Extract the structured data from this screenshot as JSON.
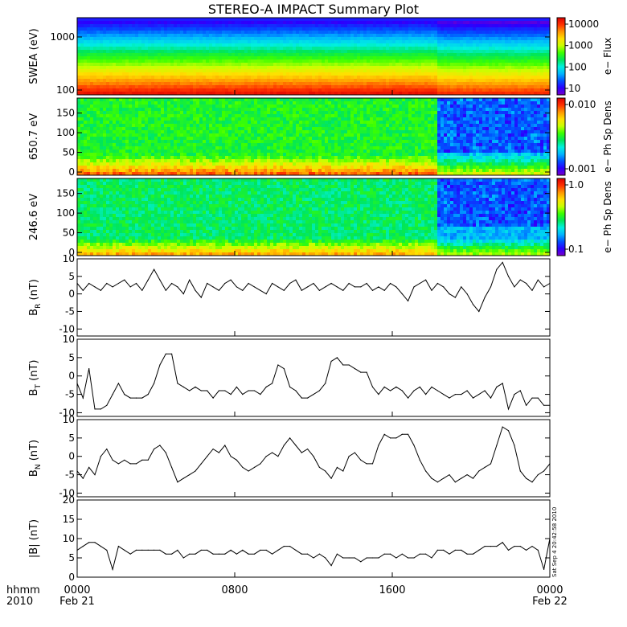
{
  "title": "STEREO-A IMPACT Summary Plot",
  "stamp": "Sat Sep  4 20:42:58 2010",
  "x_axis": {
    "hhmm_label": "hhmm",
    "year_label": "2010",
    "ticks": [
      {
        "hhmm": "0000",
        "date": "Feb 21"
      },
      {
        "hhmm": "0800",
        "date": ""
      },
      {
        "hhmm": "1600",
        "date": ""
      },
      {
        "hhmm": "0000",
        "date": "Feb 22"
      }
    ]
  },
  "colors": {
    "colormap": [
      "#7a00c8",
      "#2a00ff",
      "#0050ff",
      "#00b4ff",
      "#00f0e0",
      "#00e65a",
      "#3cff00",
      "#c8ff00",
      "#ffe000",
      "#ff9600",
      "#ff3200",
      "#dc0000"
    ],
    "line": "#000000"
  },
  "chart_data": [
    {
      "type": "heatmap",
      "ylabel": "SWEA (eV)",
      "yscale": "log",
      "yticks": [
        "1000",
        "100"
      ],
      "colorbar": {
        "label": "e− Flux",
        "ticks": [
          "10000",
          "1000",
          "100",
          "10"
        ]
      },
      "description_values": {
        "energy_eV": [
          100,
          2000
        ],
        "flux_range": [
          10,
          10000
        ]
      }
    },
    {
      "type": "heatmap",
      "ylabel": "650.7 eV",
      "ylim": [
        0,
        180
      ],
      "yticks": [
        "150",
        "100",
        "50",
        "0"
      ],
      "colorbar": {
        "label": "e− Ph Sp Dens",
        "ticks": [
          "0.010",
          "0.001"
        ]
      }
    },
    {
      "type": "heatmap",
      "ylabel": "246.6 eV",
      "ylim": [
        0,
        180
      ],
      "yticks": [
        "150",
        "100",
        "50",
        "0"
      ],
      "colorbar": {
        "label": "e− Ph Sp Dens",
        "ticks": [
          "1.0",
          "0.1"
        ]
      }
    },
    {
      "type": "line",
      "ylabel": "B",
      "ylabel_sub": "R",
      "ylabel_unit": "(nT)",
      "ylim": [
        -12,
        10
      ],
      "yticks": [
        "10",
        "5",
        "0",
        "-5",
        "-10"
      ],
      "x_hours": [
        0,
        0.3,
        0.6,
        0.9,
        1.2,
        1.5,
        1.8,
        2.1,
        2.4,
        2.7,
        3,
        3.3,
        3.6,
        3.9,
        4.2,
        4.5,
        4.8,
        5.1,
        5.4,
        5.7,
        6,
        6.3,
        6.6,
        6.9,
        7.2,
        7.5,
        7.8,
        8.1,
        8.4,
        8.7,
        9,
        9.3,
        9.6,
        9.9,
        10.2,
        10.5,
        10.8,
        11.1,
        11.4,
        11.7,
        12,
        12.3,
        12.6,
        12.9,
        13.2,
        13.5,
        13.8,
        14.1,
        14.4,
        14.7,
        15,
        15.3,
        15.6,
        15.9,
        16.2,
        16.5,
        16.8,
        17.1,
        17.4,
        17.7,
        18,
        18.3,
        18.6,
        18.9,
        19.2,
        19.5,
        19.8,
        20.1,
        20.4,
        20.7,
        21,
        21.3,
        21.6,
        21.9,
        22.2,
        22.5,
        22.8,
        23.1,
        23.4,
        23.7,
        24
      ],
      "values": [
        3,
        1,
        3,
        2,
        1,
        3,
        2,
        3,
        4,
        2,
        3,
        1,
        4,
        7,
        4,
        1,
        3,
        2,
        0,
        4,
        1,
        -1,
        3,
        2,
        1,
        3,
        4,
        2,
        1,
        3,
        2,
        1,
        0,
        3,
        2,
        1,
        3,
        4,
        1,
        2,
        3,
        1,
        2,
        3,
        2,
        1,
        3,
        2,
        2,
        3,
        1,
        2,
        1,
        3,
        2,
        0,
        -2,
        2,
        3,
        4,
        1,
        3,
        2,
        0,
        -1,
        2,
        0,
        -3,
        -5,
        -1,
        2,
        7,
        9,
        5,
        2,
        4,
        3,
        1,
        4,
        2,
        3
      ]
    },
    {
      "type": "line",
      "ylabel": "B",
      "ylabel_sub": "T",
      "ylabel_unit": "(nT)",
      "ylim": [
        -11,
        10
      ],
      "yticks": [
        "10",
        "5",
        "0",
        "-5",
        "-10"
      ],
      "x_hours": [
        0,
        0.3,
        0.6,
        0.9,
        1.2,
        1.5,
        1.8,
        2.1,
        2.4,
        2.7,
        3,
        3.3,
        3.6,
        3.9,
        4.2,
        4.5,
        4.8,
        5.1,
        5.4,
        5.7,
        6,
        6.3,
        6.6,
        6.9,
        7.2,
        7.5,
        7.8,
        8.1,
        8.4,
        8.7,
        9,
        9.3,
        9.6,
        9.9,
        10.2,
        10.5,
        10.8,
        11.1,
        11.4,
        11.7,
        12,
        12.3,
        12.6,
        12.9,
        13.2,
        13.5,
        13.8,
        14.1,
        14.4,
        14.7,
        15,
        15.3,
        15.6,
        15.9,
        16.2,
        16.5,
        16.8,
        17.1,
        17.4,
        17.7,
        18,
        18.3,
        18.6,
        18.9,
        19.2,
        19.5,
        19.8,
        20.1,
        20.4,
        20.7,
        21,
        21.3,
        21.6,
        21.9,
        22.2,
        22.5,
        22.8,
        23.1,
        23.4,
        23.7,
        24
      ],
      "values": [
        -2,
        -6,
        2,
        -9,
        -9,
        -8,
        -5,
        -2,
        -5,
        -6,
        -6,
        -6,
        -5,
        -2,
        3,
        6,
        6,
        -2,
        -3,
        -4,
        -3,
        -4,
        -4,
        -6,
        -4,
        -4,
        -5,
        -3,
        -5,
        -4,
        -4,
        -5,
        -3,
        -2,
        3,
        2,
        -3,
        -4,
        -6,
        -6,
        -5,
        -4,
        -2,
        4,
        5,
        3,
        3,
        2,
        1,
        1,
        -3,
        -5,
        -3,
        -4,
        -3,
        -4,
        -6,
        -4,
        -3,
        -5,
        -3,
        -4,
        -5,
        -6,
        -5,
        -5,
        -4,
        -6,
        -5,
        -4,
        -6,
        -3,
        -2,
        -9,
        -5,
        -4,
        -8,
        -6,
        -6,
        -8,
        -8
      ]
    },
    {
      "type": "line",
      "ylabel": "B",
      "ylabel_sub": "N",
      "ylabel_unit": "(nT)",
      "ylim": [
        -11,
        10
      ],
      "yticks": [
        "10",
        "5",
        "0",
        "-5",
        "-10"
      ],
      "x_hours": [
        0,
        0.3,
        0.6,
        0.9,
        1.2,
        1.5,
        1.8,
        2.1,
        2.4,
        2.7,
        3,
        3.3,
        3.6,
        3.9,
        4.2,
        4.5,
        4.8,
        5.1,
        5.4,
        5.7,
        6,
        6.3,
        6.6,
        6.9,
        7.2,
        7.5,
        7.8,
        8.1,
        8.4,
        8.7,
        9,
        9.3,
        9.6,
        9.9,
        10.2,
        10.5,
        10.8,
        11.1,
        11.4,
        11.7,
        12,
        12.3,
        12.6,
        12.9,
        13.2,
        13.5,
        13.8,
        14.1,
        14.4,
        14.7,
        15,
        15.3,
        15.6,
        15.9,
        16.2,
        16.5,
        16.8,
        17.1,
        17.4,
        17.7,
        18,
        18.3,
        18.6,
        18.9,
        19.2,
        19.5,
        19.8,
        20.1,
        20.4,
        20.7,
        21,
        21.3,
        21.6,
        21.9,
        22.2,
        22.5,
        22.8,
        23.1,
        23.4,
        23.7,
        24
      ],
      "values": [
        -4,
        -6,
        -3,
        -5,
        0,
        2,
        -1,
        -2,
        -1,
        -2,
        -2,
        -1,
        -1,
        2,
        3,
        1,
        -3,
        -7,
        -6,
        -5,
        -4,
        -2,
        0,
        2,
        1,
        3,
        0,
        -1,
        -3,
        -4,
        -3,
        -2,
        0,
        1,
        0,
        3,
        5,
        3,
        1,
        2,
        0,
        -3,
        -4,
        -6,
        -3,
        -4,
        0,
        1,
        -1,
        -2,
        -2,
        3,
        6,
        5,
        5,
        6,
        6,
        3,
        -1,
        -4,
        -6,
        -7,
        -6,
        -5,
        -7,
        -6,
        -5,
        -6,
        -4,
        -3,
        -2,
        3,
        8,
        7,
        3,
        -4,
        -6,
        -7,
        -5,
        -4,
        -2
      ]
    },
    {
      "type": "line",
      "ylabel": "|B|",
      "ylabel_sub": "",
      "ylabel_unit": "(nT)",
      "ylim": [
        0,
        20
      ],
      "yticks": [
        "20",
        "15",
        "10",
        "5",
        "0"
      ],
      "x_hours": [
        0,
        0.3,
        0.6,
        0.9,
        1.2,
        1.5,
        1.8,
        2.1,
        2.4,
        2.7,
        3,
        3.3,
        3.6,
        3.9,
        4.2,
        4.5,
        4.8,
        5.1,
        5.4,
        5.7,
        6,
        6.3,
        6.6,
        6.9,
        7.2,
        7.5,
        7.8,
        8.1,
        8.4,
        8.7,
        9,
        9.3,
        9.6,
        9.9,
        10.2,
        10.5,
        10.8,
        11.1,
        11.4,
        11.7,
        12,
        12.3,
        12.6,
        12.9,
        13.2,
        13.5,
        13.8,
        14.1,
        14.4,
        14.7,
        15,
        15.3,
        15.6,
        15.9,
        16.2,
        16.5,
        16.8,
        17.1,
        17.4,
        17.7,
        18,
        18.3,
        18.6,
        18.9,
        19.2,
        19.5,
        19.8,
        20.1,
        20.4,
        20.7,
        21,
        21.3,
        21.6,
        21.9,
        22.2,
        22.5,
        22.8,
        23.1,
        23.4,
        23.7,
        24
      ],
      "values": [
        7,
        8,
        9,
        9,
        8,
        7,
        2,
        8,
        7,
        6,
        7,
        7,
        7,
        7,
        7,
        6,
        6,
        7,
        5,
        6,
        6,
        7,
        7,
        6,
        6,
        6,
        7,
        6,
        7,
        6,
        6,
        7,
        7,
        6,
        7,
        8,
        8,
        7,
        6,
        6,
        5,
        6,
        5,
        3,
        6,
        5,
        5,
        5,
        4,
        5,
        5,
        5,
        6,
        6,
        5,
        6,
        5,
        5,
        6,
        6,
        5,
        7,
        7,
        6,
        7,
        7,
        6,
        6,
        7,
        8,
        8,
        8,
        9,
        7,
        8,
        8,
        7,
        8,
        7,
        2,
        10
      ]
    }
  ]
}
